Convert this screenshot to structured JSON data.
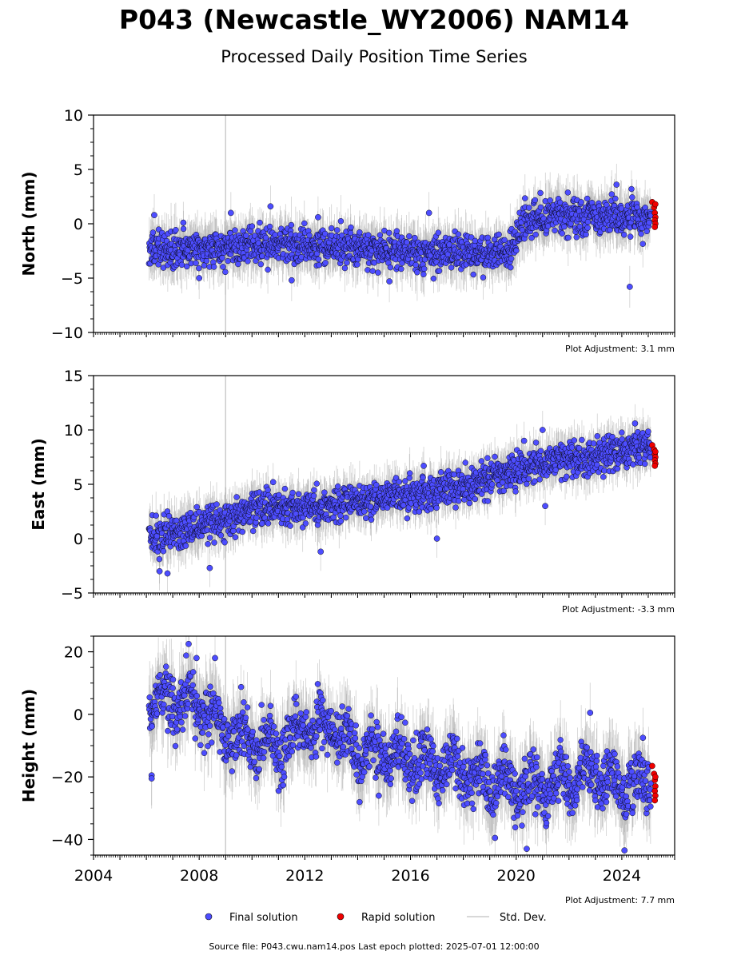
{
  "title": "P043 (Newcastle_WY2006) NAM14",
  "subtitle": "Processed Daily Position Time Series",
  "source_note": "Source file: P043.cwu.nam14.pos  Last epoch plotted: 2025-07-01 12:00:00",
  "legend": {
    "final": "Final solution",
    "rapid": "Rapid solution",
    "std": "Std. Dev."
  },
  "colors": {
    "final": "#4d4dff",
    "rapid": "#ee0000",
    "std": "#aaaaaa",
    "marker_edge": "#000000"
  },
  "chart_data": [
    {
      "type": "scatter",
      "ylabel": "North (mm)",
      "adjustment": "Plot Adjustment: 3.1 mm",
      "xlim": [
        2004,
        2026
      ],
      "ylim": [
        -10,
        10
      ],
      "yticks": [
        -10,
        -5,
        0,
        5,
        10
      ],
      "ytick_labels": [
        "−10",
        "−5",
        "0",
        "5",
        "10"
      ],
      "xticks": [
        2004,
        2008,
        2012,
        2016,
        2020,
        2024
      ],
      "xtick_labels": [
        "",
        "",
        "",
        "",
        "",
        ""
      ],
      "vline_x": 2009.0,
      "series": [
        {
          "name": "Final solution",
          "x": [
            2006.1,
            2007.0,
            2008.0,
            2009.0,
            2010.0,
            2011.0,
            2012.0,
            2013.0,
            2014.0,
            2015.0,
            2016.0,
            2017.0,
            2018.0,
            2019.0,
            2019.9,
            2020.3,
            2021.0,
            2022.0,
            2023.0,
            2024.0,
            2025.1
          ],
          "y": [
            -2.0,
            -2.3,
            -2.4,
            -2.3,
            -2.1,
            -2.2,
            -2.0,
            -2.2,
            -2.3,
            -2.5,
            -2.7,
            -2.8,
            -2.7,
            -2.6,
            -2.5,
            0.5,
            0.6,
            0.8,
            0.8,
            0.6,
            0.5
          ],
          "spread": 1.2,
          "outliers": [
            [
              2006.3,
              0.8
            ],
            [
              2007.4,
              0.1
            ],
            [
              2009.2,
              1.0
            ],
            [
              2010.7,
              1.6
            ],
            [
              2012.5,
              0.6
            ],
            [
              2016.7,
              1.0
            ],
            [
              2023.8,
              3.6
            ],
            [
              2024.3,
              -5.8
            ],
            [
              2011.5,
              -5.2
            ],
            [
              2015.2,
              -5.3
            ],
            [
              2008.0,
              -5.0
            ]
          ]
        },
        {
          "name": "Rapid solution",
          "x": [
            2025.15,
            2025.2,
            2025.25,
            2025.3,
            2025.35,
            2025.4,
            2025.45,
            2025.5
          ],
          "y": [
            2.0,
            1.5,
            1.0,
            0.6,
            0.3,
            0.0,
            -0.3,
            1.8
          ]
        }
      ]
    },
    {
      "type": "scatter",
      "ylabel": "East (mm)",
      "adjustment": "Plot Adjustment: -3.3 mm",
      "xlim": [
        2004,
        2026
      ],
      "ylim": [
        -5,
        15
      ],
      "yticks": [
        -5,
        0,
        5,
        10,
        15
      ],
      "ytick_labels": [
        "−5",
        "0",
        "5",
        "10",
        "15"
      ],
      "xticks": [
        2004,
        2008,
        2012,
        2016,
        2020,
        2024
      ],
      "xtick_labels": [
        "",
        "",
        "",
        "",
        "",
        ""
      ],
      "vline_x": 2009.0,
      "series": [
        {
          "name": "Final solution",
          "x": [
            2006.1,
            2007.0,
            2008.0,
            2009.0,
            2010.0,
            2011.0,
            2012.0,
            2013.0,
            2014.0,
            2015.0,
            2016.0,
            2017.0,
            2018.0,
            2019.0,
            2020.0,
            2021.0,
            2022.0,
            2023.0,
            2024.0,
            2025.1
          ],
          "y": [
            0.0,
            0.4,
            0.9,
            1.8,
            2.5,
            2.9,
            2.8,
            3.0,
            3.4,
            3.8,
            4.0,
            4.3,
            4.9,
            5.6,
            6.2,
            7.0,
            7.2,
            7.5,
            8.2,
            8.4
          ],
          "spread": 1.1,
          "outliers": [
            [
              2006.5,
              -3.0
            ],
            [
              2006.8,
              -3.2
            ],
            [
              2008.4,
              -2.7
            ],
            [
              2010.8,
              5.2
            ],
            [
              2012.6,
              -1.2
            ],
            [
              2016.5,
              6.7
            ],
            [
              2017.0,
              0.0
            ],
            [
              2020.3,
              9.0
            ],
            [
              2021.0,
              10.0
            ],
            [
              2021.1,
              3.0
            ],
            [
              2024.5,
              10.6
            ]
          ]
        },
        {
          "name": "Rapid solution",
          "x": [
            2025.15,
            2025.2,
            2025.25,
            2025.3,
            2025.35,
            2025.4,
            2025.45,
            2025.5
          ],
          "y": [
            8.6,
            8.2,
            7.8,
            7.5,
            7.2,
            6.9,
            6.7,
            8.0
          ]
        }
      ]
    },
    {
      "type": "scatter",
      "ylabel": "Height (mm)",
      "adjustment": "Plot Adjustment: 7.7 mm",
      "xlim": [
        2004,
        2026
      ],
      "ylim": [
        -45,
        25
      ],
      "yticks": [
        -40,
        -20,
        0,
        20
      ],
      "ytick_labels": [
        "−40",
        "−20",
        "0",
        "20"
      ],
      "xticks": [
        2004,
        2008,
        2012,
        2016,
        2020,
        2024
      ],
      "xtick_labels": [
        "2004",
        "2008",
        "2012",
        "2016",
        "2020",
        "2024"
      ],
      "vline_x": 2009.0,
      "series": [
        {
          "name": "Final solution",
          "x": [
            2006.1,
            2007.0,
            2008.0,
            2009.0,
            2010.0,
            2011.0,
            2012.0,
            2013.0,
            2014.0,
            2015.0,
            2016.0,
            2017.0,
            2018.0,
            2019.0,
            2020.0,
            2021.0,
            2022.0,
            2023.0,
            2024.0,
            2025.1
          ],
          "y": [
            3.0,
            6.0,
            2.0,
            -6.0,
            -8.0,
            -10.0,
            -5.0,
            -4.0,
            -11.0,
            -13.0,
            -14.0,
            -16.0,
            -18.0,
            -21.0,
            -24.0,
            -22.0,
            -21.0,
            -20.0,
            -23.0,
            -22.0
          ],
          "spread": 6.0,
          "outliers": [
            [
              2006.2,
              -19.5
            ],
            [
              2006.2,
              -20.5
            ],
            [
              2007.6,
              22.5
            ],
            [
              2007.9,
              18.0
            ],
            [
              2008.6,
              18.0
            ],
            [
              2020.4,
              -43.0
            ],
            [
              2022.8,
              0.5
            ],
            [
              2024.1,
              -43.5
            ],
            [
              2024.8,
              -7.5
            ],
            [
              2019.2,
              -39.5
            ],
            [
              2014.8,
              -26.0
            ]
          ]
        },
        {
          "name": "Rapid solution",
          "x": [
            2025.15,
            2025.2,
            2025.25,
            2025.3,
            2025.35,
            2025.4,
            2025.45,
            2025.5
          ],
          "y": [
            -16.5,
            -19.0,
            -21.0,
            -23.0,
            -24.5,
            -26.0,
            -27.5,
            -20.0
          ]
        }
      ]
    }
  ]
}
